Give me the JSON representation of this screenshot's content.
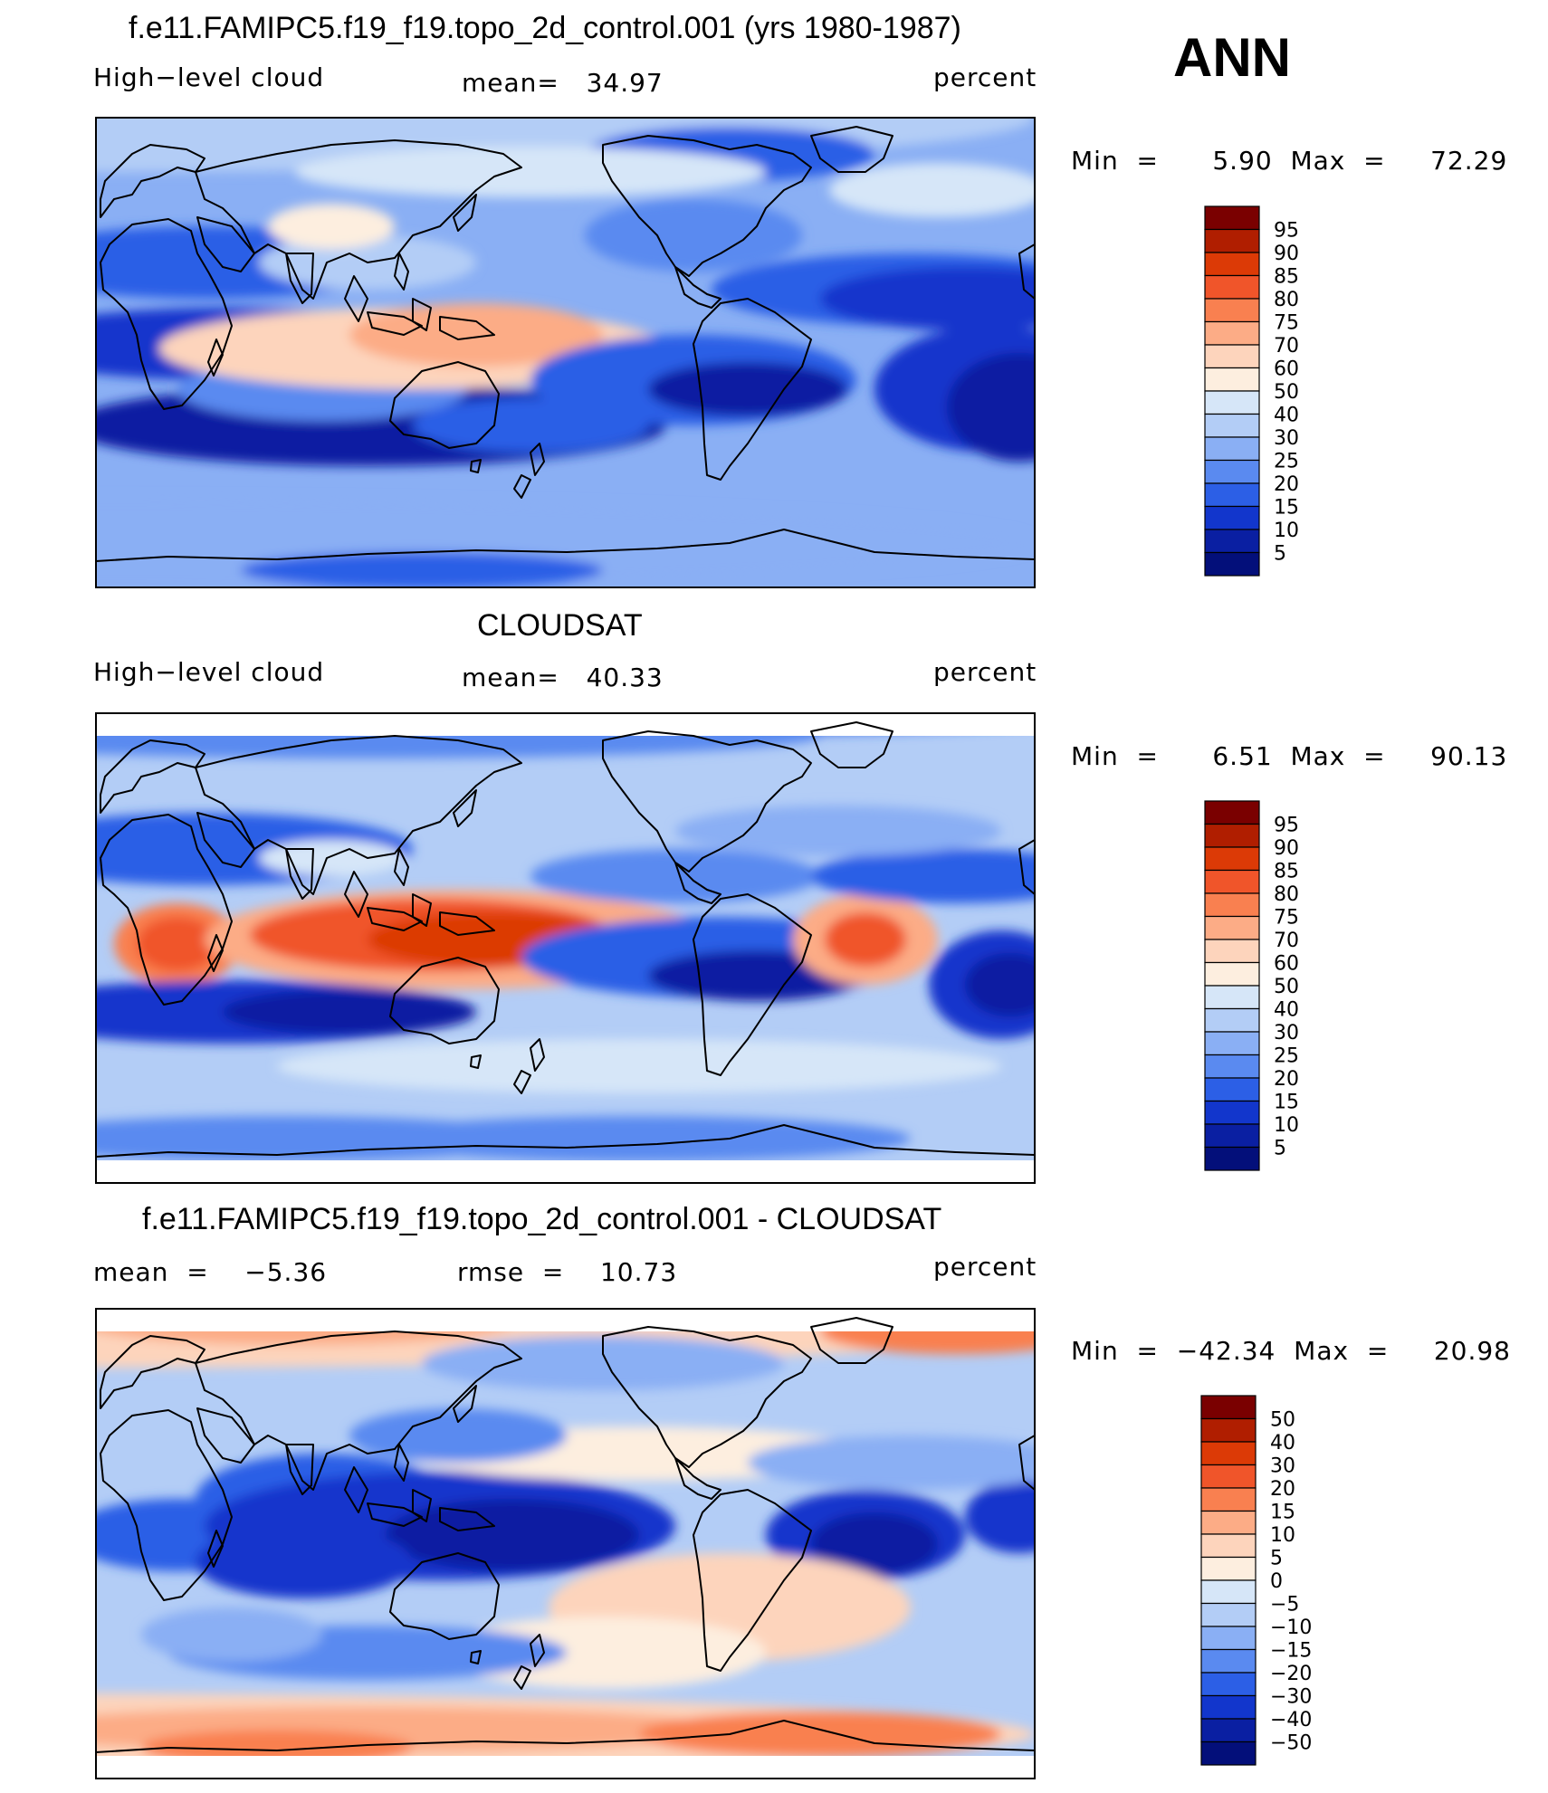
{
  "season": "ANN",
  "panels": [
    {
      "title": "f.e11.FAMIPC5.f19_f19.topo_2d_control.001 (yrs 1980-1987)",
      "left_label": "High−level cloud",
      "center_label": "mean=   34.97",
      "right_label": "percent",
      "minmax": "Min  =      5.90  Max  =     72.29",
      "colorbar_labels": [
        "95",
        "90",
        "85",
        "80",
        "75",
        "70",
        "60",
        "50",
        "40",
        "30",
        "25",
        "20",
        "15",
        "10",
        "5"
      ]
    },
    {
      "title": "CLOUDSAT",
      "left_label": "High−level cloud",
      "center_label": "mean=   40.33",
      "right_label": "percent",
      "minmax": "Min  =      6.51  Max  =     90.13",
      "colorbar_labels": [
        "95",
        "90",
        "85",
        "80",
        "75",
        "70",
        "60",
        "50",
        "40",
        "30",
        "25",
        "20",
        "15",
        "10",
        "5"
      ]
    },
    {
      "title": "f.e11.FAMIPC5.f19_f19.topo_2d_control.001 - CLOUDSAT",
      "left_label": "mean  =    −5.36",
      "center_label": "rmse  =    10.73",
      "right_label": "percent",
      "minmax": "Min  =  −42.34  Max  =     20.98",
      "colorbar_labels": [
        "50",
        "40",
        "30",
        "20",
        "15",
        "10",
        "5",
        "0",
        "−5",
        "−10",
        "−15",
        "−20",
        "−30",
        "−40",
        "−50"
      ]
    }
  ],
  "colors": {
    "scale": [
      "#7a0000",
      "#b01e00",
      "#dc3a06",
      "#f0552a",
      "#f98050",
      "#fcac86",
      "#fdd4bc",
      "#fdeedf",
      "#d6e6f8",
      "#b3cdf6",
      "#8aaff4",
      "#5a8af0",
      "#2c5fe6",
      "#1236cc",
      "#0a1fa2",
      "#030f7a"
    ],
    "border": "#000000"
  },
  "chart_data": [
    {
      "type": "heatmap",
      "title": "f.e11.FAMIPC5.f19_f19.topo_2d_control.001 (yrs 1980-1987)",
      "variable": "High-level cloud",
      "units": "percent",
      "mean": 34.97,
      "min": 5.9,
      "max": 72.29,
      "levels": [
        5,
        10,
        15,
        20,
        25,
        30,
        40,
        50,
        60,
        70,
        75,
        80,
        85,
        90,
        95
      ]
    },
    {
      "type": "heatmap",
      "title": "CLOUDSAT",
      "variable": "High-level cloud",
      "units": "percent",
      "mean": 40.33,
      "min": 6.51,
      "max": 90.13,
      "levels": [
        5,
        10,
        15,
        20,
        25,
        30,
        40,
        50,
        60,
        70,
        75,
        80,
        85,
        90,
        95
      ]
    },
    {
      "type": "heatmap",
      "title": "f.e11.FAMIPC5.f19_f19.topo_2d_control.001 - CLOUDSAT",
      "units": "percent",
      "mean": -5.36,
      "rmse": 10.73,
      "min": -42.34,
      "max": 20.98,
      "levels": [
        -50,
        -40,
        -30,
        -20,
        -15,
        -10,
        -5,
        0,
        5,
        10,
        15,
        20,
        30,
        40,
        50
      ]
    }
  ]
}
